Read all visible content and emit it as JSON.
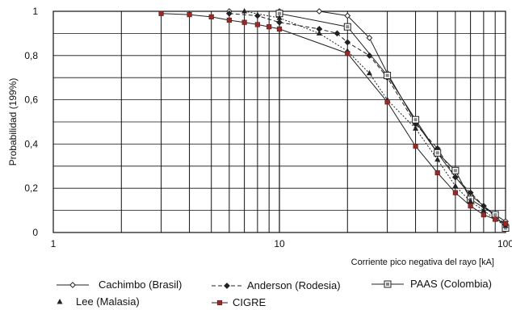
{
  "chart_data": {
    "type": "line",
    "xlabel": "Corriente pico negativa del rayo  [kA]",
    "ylabel": "Probabilidad (199%)",
    "x_scale": "log",
    "xlim": [
      1,
      100
    ],
    "ylim": [
      0,
      1
    ],
    "x_tick_labels": [
      "1",
      "10",
      "100"
    ],
    "y_tick_labels": [
      "0",
      "0,2",
      "0,4",
      "0,6",
      "0,8",
      "1"
    ],
    "grid": true,
    "legend_position": "bottom",
    "series": [
      {
        "name": "Cachimbo (Brasil)",
        "marker": "open-diamond",
        "line": "solid",
        "x": [
          6,
          10,
          15,
          20,
          25,
          30,
          40,
          50,
          60,
          70,
          80,
          90,
          100
        ],
        "y": [
          1.0,
          1.0,
          1.0,
          0.98,
          0.88,
          0.72,
          0.5,
          0.36,
          0.25,
          0.17,
          0.12,
          0.08,
          0.05
        ]
      },
      {
        "name": "Anderson (Rodesia)",
        "marker": "filled-diamond",
        "line": "dashed",
        "x": [
          6,
          8,
          10,
          15,
          18,
          20,
          25,
          30,
          40,
          50,
          60,
          70,
          80,
          90,
          100
        ],
        "y": [
          0.99,
          0.98,
          0.95,
          0.92,
          0.9,
          0.86,
          0.8,
          0.7,
          0.49,
          0.38,
          0.25,
          0.18,
          0.12,
          0.07,
          0.04
        ]
      },
      {
        "name": "PAAS (Colombia)",
        "marker": "boxed-square",
        "line": "solid",
        "x": [
          10,
          20,
          30,
          40,
          50,
          60,
          70,
          90,
          100
        ],
        "y": [
          0.99,
          0.93,
          0.71,
          0.51,
          0.36,
          0.28,
          0.15,
          0.08,
          0.02
        ]
      },
      {
        "name": "Lee (Malasia)",
        "marker": "filled-triangle",
        "line": "dotted",
        "x": [
          7,
          10,
          15,
          20,
          25,
          30,
          40,
          50,
          60,
          70,
          80,
          90,
          100
        ],
        "y": [
          1.0,
          0.97,
          0.9,
          0.82,
          0.72,
          0.6,
          0.47,
          0.33,
          0.21,
          0.14,
          0.1,
          0.06,
          0.03
        ]
      },
      {
        "name": "CIGRE",
        "marker": "filled-square",
        "line": "solid",
        "x": [
          3,
          4,
          5,
          6,
          7,
          8,
          9,
          10,
          20,
          30,
          40,
          50,
          60,
          70,
          80,
          90,
          100
        ],
        "y": [
          0.99,
          0.985,
          0.975,
          0.96,
          0.95,
          0.94,
          0.93,
          0.92,
          0.81,
          0.59,
          0.39,
          0.27,
          0.18,
          0.12,
          0.08,
          0.06,
          0.04
        ]
      }
    ],
    "colors": {
      "default": "#222222",
      "cigre_marker": "#9a2a2a"
    }
  }
}
